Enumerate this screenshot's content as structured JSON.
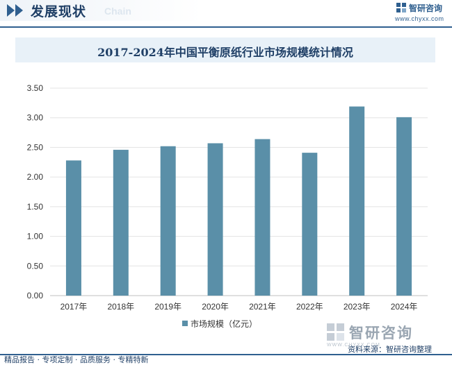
{
  "header": {
    "title": "发展现状",
    "subtitle": "Chain",
    "brand_name": "智研咨询",
    "brand_url": "www.chyxx.com"
  },
  "chart_data": {
    "type": "bar",
    "title": "2017-2024年中国平衡原纸行业市场规模统计情况",
    "categories": [
      "2017年",
      "2018年",
      "2019年",
      "2020年",
      "2021年",
      "2022年",
      "2023年",
      "2024年"
    ],
    "series": [
      {
        "name": "市场规模（亿元）",
        "values": [
          2.28,
          2.46,
          2.52,
          2.57,
          2.64,
          2.41,
          3.19,
          3.01
        ]
      }
    ],
    "y_ticks": [
      "0.00",
      "0.50",
      "1.00",
      "1.50",
      "2.00",
      "2.50",
      "3.00",
      "3.50"
    ],
    "ylim": [
      0,
      3.5
    ],
    "grid": true,
    "legend_position": "bottom",
    "bar_color": "#5a8fa8"
  },
  "footer": {
    "source": "资料来源：智研咨询整理",
    "slogan": "精品报告 · 专项定制 · 品质服务 · 专精特新",
    "brand_name": "智研咨询",
    "brand_en": "WWW.CHYXX.COM"
  }
}
